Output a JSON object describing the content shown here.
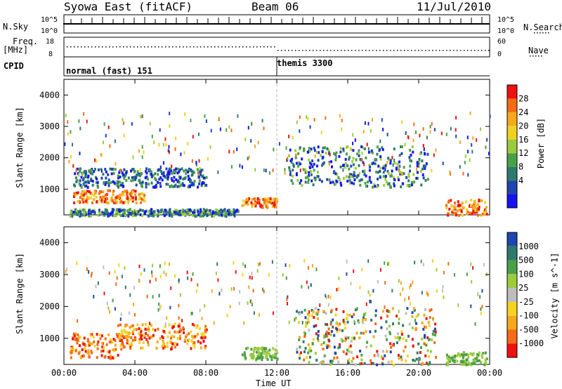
{
  "header": {
    "station": "Syowa East (fitACF)",
    "beam": "Beam 06",
    "date": "11/Jul/2010"
  },
  "summary": {
    "nsky_label": "N.Sky",
    "nsearch_label": "N.Search",
    "freq_label": "Freq.",
    "freq_unit": "[MHz]",
    "nave_label": "Nave",
    "cpid_label": "CPID",
    "noise_ticks_left": [
      "10^5",
      "10^0"
    ],
    "noise_ticks_right": [
      "10^5",
      "10^0"
    ],
    "freq_ticks": [
      "18",
      "8"
    ],
    "nave_ticks": [
      "60",
      "0"
    ],
    "cpid_segments": [
      {
        "label": "normal (fast) 151",
        "start_hour": 0
      },
      {
        "label": "themis 3300",
        "start_hour": 12
      }
    ]
  },
  "chart_data": [
    {
      "type": "heatmap",
      "panel": "power",
      "ylabel": "Slant Range [km]",
      "ylim": [
        180,
        4500
      ],
      "yticks": [
        "4000",
        "3000",
        "2000",
        "1000"
      ],
      "xlim_hours": [
        0,
        24
      ],
      "colorbar": {
        "label": "Power [dB]",
        "ticks": [
          "28",
          "24",
          "20",
          "16",
          "12",
          "8",
          "4"
        ],
        "colors": [
          "#ee1111",
          "#f56a14",
          "#f7a81d",
          "#efd21f",
          "#9ccc3c",
          "#4aa046",
          "#2d7a6c",
          "#1e46b0",
          "#1414ee"
        ]
      },
      "regions": [
        {
          "t0": 0.3,
          "t1": 9.8,
          "r0": 180,
          "r1": 400,
          "level": "low"
        },
        {
          "t0": 0.5,
          "t1": 4.5,
          "r0": 600,
          "r1": 1000,
          "level": "high"
        },
        {
          "t0": 0.5,
          "t1": 8.0,
          "r0": 1100,
          "r1": 1700,
          "level": "mid"
        },
        {
          "t0": 10.0,
          "t1": 12.0,
          "r0": 450,
          "r1": 750,
          "level": "high"
        },
        {
          "t0": 12.5,
          "t1": 20.5,
          "r0": 1100,
          "r1": 2400,
          "level": "low"
        },
        {
          "t0": 21.5,
          "t1": 23.8,
          "r0": 200,
          "r1": 700,
          "level": "high"
        }
      ]
    },
    {
      "type": "heatmap",
      "panel": "velocity",
      "ylabel": "Slant Range [km]",
      "ylim": [
        180,
        4500
      ],
      "yticks": [
        "4000",
        "3000",
        "2000",
        "1000"
      ],
      "xlim_hours": [
        0,
        24
      ],
      "xticks": [
        "00:00",
        "04:00",
        "08:00",
        "12:00",
        "16:00",
        "20:00",
        "00:00"
      ],
      "xlabel": "Time UT",
      "colorbar": {
        "label": "Velocity [m s^-1]",
        "ticks": [
          "1000",
          "500",
          "100",
          "25",
          "-25",
          "-100",
          "-500",
          "-1000"
        ],
        "colors": [
          "#1e46b0",
          "#2d7a6c",
          "#4aa046",
          "#9ccc3c",
          "#bdbdbd",
          "#f7d21f",
          "#f7a81d",
          "#f56a14",
          "#ee1111"
        ]
      },
      "regions": [
        {
          "t0": 0.3,
          "t1": 3.0,
          "r0": 400,
          "r1": 1200,
          "level": "negative"
        },
        {
          "t0": 3.0,
          "t1": 8.0,
          "r0": 700,
          "r1": 1500,
          "level": "negative"
        },
        {
          "t0": 10.0,
          "t1": 12.0,
          "r0": 350,
          "r1": 750,
          "level": "positive"
        },
        {
          "t0": 13.0,
          "t1": 21.0,
          "r0": 200,
          "r1": 2000,
          "level": "mixed"
        },
        {
          "t0": 21.5,
          "t1": 23.8,
          "r0": 200,
          "r1": 600,
          "level": "positive"
        }
      ]
    }
  ]
}
